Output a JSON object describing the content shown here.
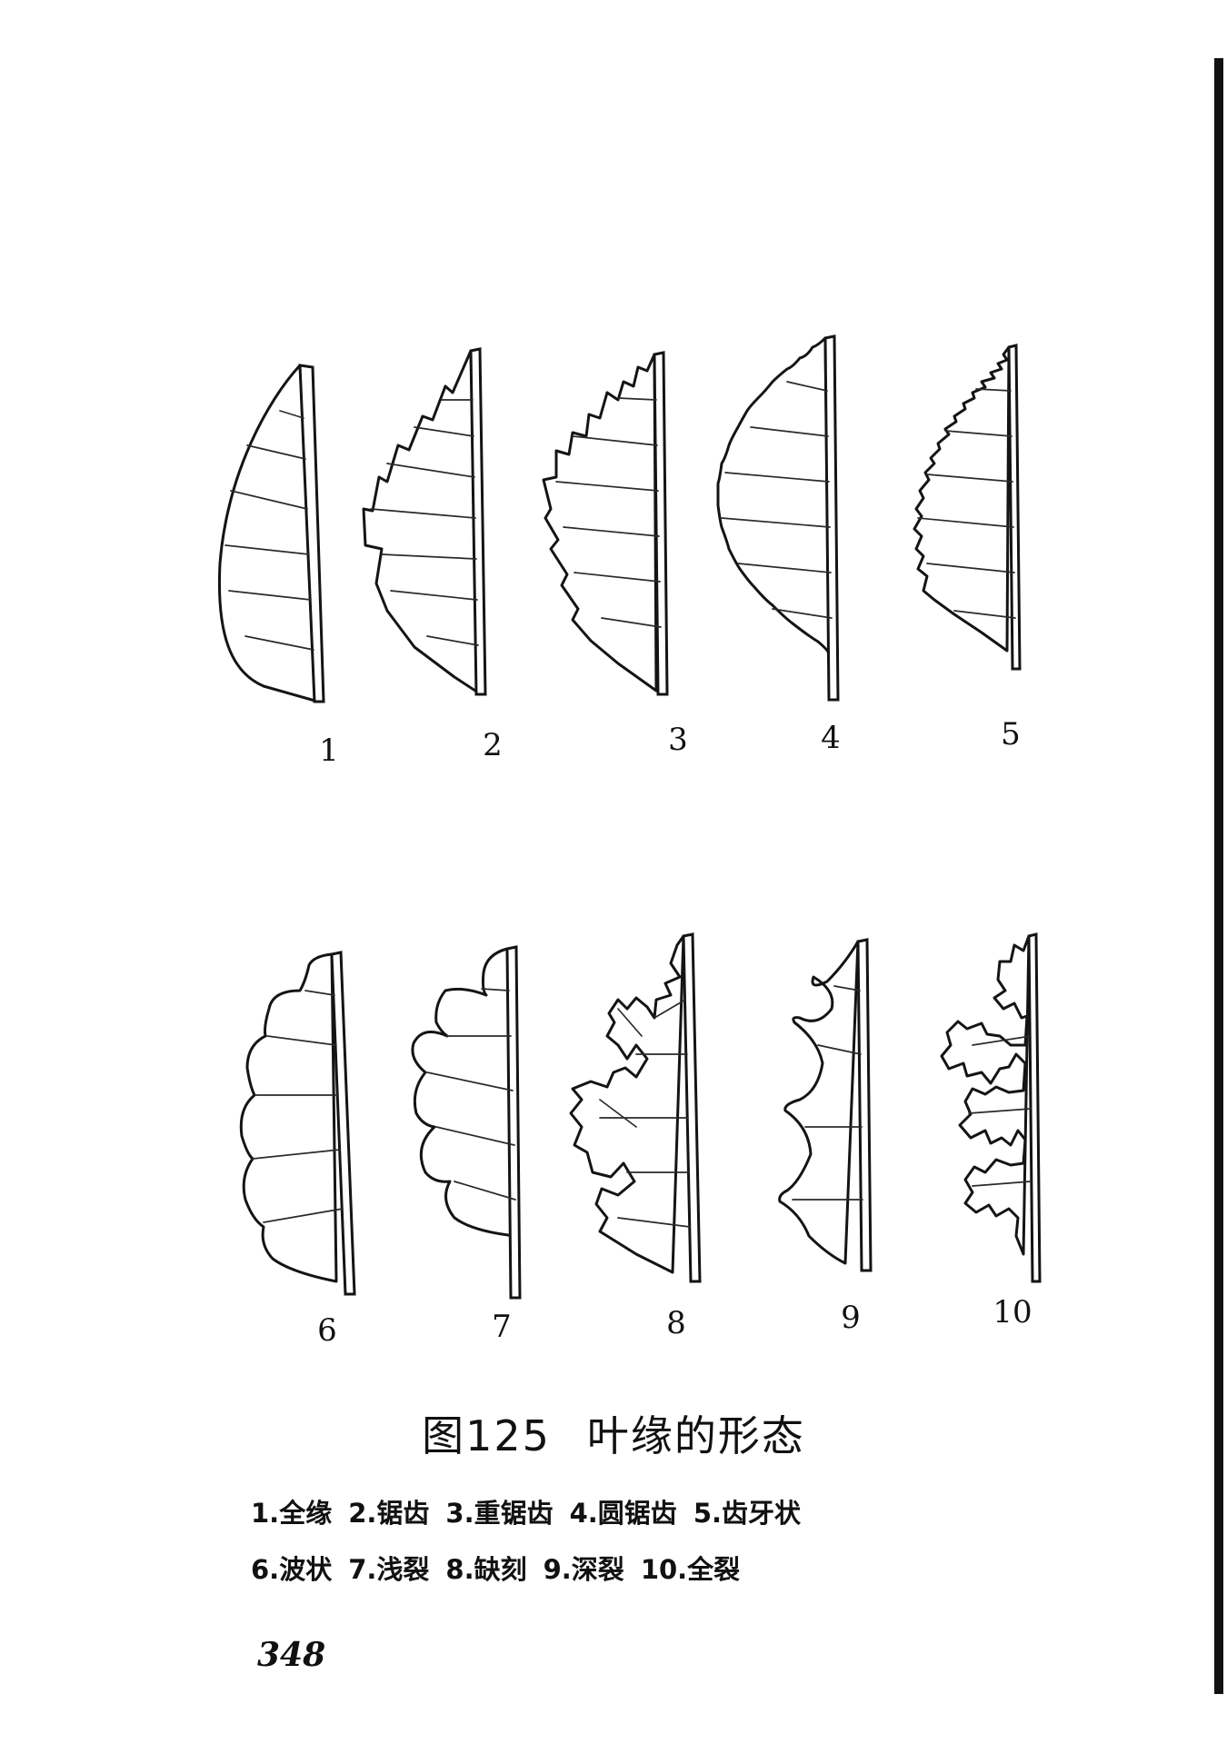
{
  "figure": {
    "labels_row1": [
      "1",
      "2",
      "3",
      "4",
      "5"
    ],
    "labels_row2": [
      "6",
      "7",
      "8",
      "9",
      "10"
    ],
    "caption_number": "图125",
    "caption_title": "叶缘的形态"
  },
  "legend": {
    "line1": [
      "1.全缘",
      "2.锯齿",
      "3.重锯齿",
      "4.圆锯齿",
      "5.齿牙状"
    ],
    "line2": [
      "6.波状",
      "7.浅裂",
      "8.缺刻",
      "9.深裂",
      "10.全裂"
    ]
  },
  "page_number": "348"
}
